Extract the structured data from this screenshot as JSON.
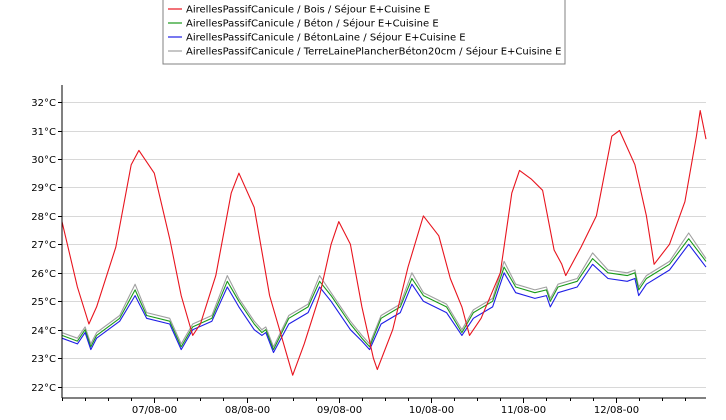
{
  "chart_data": {
    "type": "line",
    "title": "",
    "xlabel": "",
    "ylabel": "",
    "ylim": [
      21.6,
      32.6
    ],
    "xlim": [
      "2000-08-06T00:00",
      "2000-08-12T23:30"
    ],
    "y_ticks": [
      22,
      23,
      24,
      25,
      26,
      27,
      28,
      29,
      30,
      31,
      32
    ],
    "y_tick_labels": [
      "22°C",
      "23°C",
      "24°C",
      "25°C",
      "26°C",
      "27°C",
      "28°C",
      "29°C",
      "30°C",
      "31°C",
      "32°C"
    ],
    "x_ticks": [
      "2000-08-07T00:00",
      "2000-08-08T00:00",
      "2000-08-09T00:00",
      "2000-08-10T00:00",
      "2000-08-11T00:00",
      "2000-08-12T00:00"
    ],
    "x_tick_labels": [
      "07/08-00",
      "08/08-00",
      "09/08-00",
      "10/08-00",
      "11/08-00",
      "12/08-00"
    ],
    "grid": "horizontal",
    "legend_position": "top",
    "series": [
      {
        "name": "AirellesPassifCanicule / Bois / Séjour E+Cuisine E",
        "color": "#e8141e",
        "points": [
          [
            "2000-08-06T00:00",
            27.8
          ],
          [
            "2000-08-06T04:00",
            25.5
          ],
          [
            "2000-08-06T07:00",
            24.2
          ],
          [
            "2000-08-06T09:00",
            24.8
          ],
          [
            "2000-08-06T14:00",
            26.9
          ],
          [
            "2000-08-06T18:00",
            29.8
          ],
          [
            "2000-08-06T20:00",
            30.3
          ],
          [
            "2000-08-07T00:00",
            29.5
          ],
          [
            "2000-08-07T04:00",
            27.2
          ],
          [
            "2000-08-07T07:00",
            25.2
          ],
          [
            "2000-08-07T10:00",
            23.8
          ],
          [
            "2000-08-07T12:00",
            24.2
          ],
          [
            "2000-08-07T16:00",
            25.9
          ],
          [
            "2000-08-07T20:00",
            28.8
          ],
          [
            "2000-08-07T22:00",
            29.5
          ],
          [
            "2000-08-08T02:00",
            28.3
          ],
          [
            "2000-08-08T06:00",
            25.2
          ],
          [
            "2000-08-08T09:00",
            23.8
          ],
          [
            "2000-08-08T12:00",
            22.4
          ],
          [
            "2000-08-08T15:00",
            23.5
          ],
          [
            "2000-08-08T19:00",
            25.2
          ],
          [
            "2000-08-08T22:00",
            27.0
          ],
          [
            "2000-08-09T00:00",
            27.8
          ],
          [
            "2000-08-09T03:00",
            27.0
          ],
          [
            "2000-08-09T06:00",
            24.8
          ],
          [
            "2000-08-09T09:00",
            23.0
          ],
          [
            "2000-08-09T10:00",
            22.6
          ],
          [
            "2000-08-09T14:00",
            24.0
          ],
          [
            "2000-08-09T18:00",
            26.2
          ],
          [
            "2000-08-09T22:00",
            28.0
          ],
          [
            "2000-08-10T02:00",
            27.3
          ],
          [
            "2000-08-10T05:00",
            25.8
          ],
          [
            "2000-08-10T08:00",
            24.8
          ],
          [
            "2000-08-10T10:00",
            23.8
          ],
          [
            "2000-08-10T13:00",
            24.4
          ],
          [
            "2000-08-10T18:00",
            26.0
          ],
          [
            "2000-08-10T21:00",
            28.8
          ],
          [
            "2000-08-10T23:00",
            29.6
          ],
          [
            "2000-08-11T02:00",
            29.3
          ],
          [
            "2000-08-11T05:00",
            28.9
          ],
          [
            "2000-08-11T08:00",
            26.8
          ],
          [
            "2000-08-11T10:00",
            26.3
          ],
          [
            "2000-08-11T11:00",
            25.9
          ],
          [
            "2000-08-11T15:00",
            26.9
          ],
          [
            "2000-08-11T19:00",
            28.0
          ],
          [
            "2000-08-11T23:00",
            30.8
          ],
          [
            "2000-08-12T01:00",
            31.0
          ],
          [
            "2000-08-12T05:00",
            29.8
          ],
          [
            "2000-08-12T08:00",
            28.0
          ],
          [
            "2000-08-12T10:00",
            26.3
          ],
          [
            "2000-08-12T14:00",
            27.0
          ],
          [
            "2000-08-12T18:00",
            28.5
          ],
          [
            "2000-08-12T21:00",
            30.8
          ],
          [
            "2000-08-12T22:00",
            31.7
          ],
          [
            "2000-08-12T23:30",
            30.7
          ]
        ]
      },
      {
        "name": "AirellesPassifCanicule / Béton / Séjour E+Cuisine E",
        "color": "#1a9a1a",
        "points": [
          [
            "2000-08-06T00:00",
            23.8
          ],
          [
            "2000-08-06T04:00",
            23.6
          ],
          [
            "2000-08-06T06:00",
            24.0
          ],
          [
            "2000-08-06T07:30",
            23.4
          ],
          [
            "2000-08-06T09:00",
            23.8
          ],
          [
            "2000-08-06T15:00",
            24.4
          ],
          [
            "2000-08-06T19:00",
            25.4
          ],
          [
            "2000-08-06T22:00",
            24.5
          ],
          [
            "2000-08-07T04:00",
            24.3
          ],
          [
            "2000-08-07T07:00",
            23.4
          ],
          [
            "2000-08-07T10:00",
            24.1
          ],
          [
            "2000-08-07T15:00",
            24.4
          ],
          [
            "2000-08-07T19:00",
            25.7
          ],
          [
            "2000-08-07T22:00",
            25.0
          ],
          [
            "2000-08-08T02:00",
            24.2
          ],
          [
            "2000-08-08T04:00",
            23.9
          ],
          [
            "2000-08-08T05:00",
            24.0
          ],
          [
            "2000-08-08T07:00",
            23.3
          ],
          [
            "2000-08-08T11:00",
            24.4
          ],
          [
            "2000-08-08T16:00",
            24.8
          ],
          [
            "2000-08-08T19:00",
            25.7
          ],
          [
            "2000-08-08T22:00",
            25.2
          ],
          [
            "2000-08-09T03:00",
            24.2
          ],
          [
            "2000-08-09T06:00",
            23.7
          ],
          [
            "2000-08-09T08:00",
            23.4
          ],
          [
            "2000-08-09T11:00",
            24.4
          ],
          [
            "2000-08-09T16:00",
            24.8
          ],
          [
            "2000-08-09T19:00",
            25.8
          ],
          [
            "2000-08-09T22:00",
            25.2
          ],
          [
            "2000-08-10T04:00",
            24.8
          ],
          [
            "2000-08-10T08:00",
            23.9
          ],
          [
            "2000-08-10T11:00",
            24.6
          ],
          [
            "2000-08-10T16:00",
            25.0
          ],
          [
            "2000-08-10T19:00",
            26.2
          ],
          [
            "2000-08-10T22:00",
            25.5
          ],
          [
            "2000-08-11T03:00",
            25.3
          ],
          [
            "2000-08-11T06:00",
            25.4
          ],
          [
            "2000-08-11T07:00",
            25.0
          ],
          [
            "2000-08-11T09:00",
            25.5
          ],
          [
            "2000-08-11T14:00",
            25.7
          ],
          [
            "2000-08-11T18:00",
            26.5
          ],
          [
            "2000-08-11T22:00",
            26.0
          ],
          [
            "2000-08-12T03:00",
            25.9
          ],
          [
            "2000-08-12T05:00",
            26.0
          ],
          [
            "2000-08-12T06:00",
            25.4
          ],
          [
            "2000-08-12T08:00",
            25.8
          ],
          [
            "2000-08-12T14:00",
            26.3
          ],
          [
            "2000-08-12T19:00",
            27.2
          ],
          [
            "2000-08-12T23:30",
            26.4
          ]
        ]
      },
      {
        "name": "AirellesPassifCanicule / BétonLaine / Séjour E+Cuisine E",
        "color": "#1e1ee6",
        "points": [
          [
            "2000-08-06T00:00",
            23.7
          ],
          [
            "2000-08-06T04:00",
            23.5
          ],
          [
            "2000-08-06T06:00",
            23.9
          ],
          [
            "2000-08-06T07:30",
            23.3
          ],
          [
            "2000-08-06T09:00",
            23.7
          ],
          [
            "2000-08-06T15:00",
            24.3
          ],
          [
            "2000-08-06T19:00",
            25.2
          ],
          [
            "2000-08-06T22:00",
            24.4
          ],
          [
            "2000-08-07T04:00",
            24.2
          ],
          [
            "2000-08-07T07:00",
            23.3
          ],
          [
            "2000-08-07T10:00",
            24.0
          ],
          [
            "2000-08-07T15:00",
            24.3
          ],
          [
            "2000-08-07T19:00",
            25.5
          ],
          [
            "2000-08-07T22:00",
            24.8
          ],
          [
            "2000-08-08T02:00",
            24.0
          ],
          [
            "2000-08-08T04:00",
            23.8
          ],
          [
            "2000-08-08T05:00",
            23.9
          ],
          [
            "2000-08-08T07:00",
            23.2
          ],
          [
            "2000-08-08T11:00",
            24.2
          ],
          [
            "2000-08-08T16:00",
            24.6
          ],
          [
            "2000-08-08T19:00",
            25.5
          ],
          [
            "2000-08-08T22:00",
            25.0
          ],
          [
            "2000-08-09T03:00",
            24.0
          ],
          [
            "2000-08-09T06:00",
            23.6
          ],
          [
            "2000-08-09T08:00",
            23.3
          ],
          [
            "2000-08-09T11:00",
            24.2
          ],
          [
            "2000-08-09T16:00",
            24.6
          ],
          [
            "2000-08-09T19:00",
            25.6
          ],
          [
            "2000-08-09T22:00",
            25.0
          ],
          [
            "2000-08-10T04:00",
            24.6
          ],
          [
            "2000-08-10T08:00",
            23.8
          ],
          [
            "2000-08-10T11:00",
            24.4
          ],
          [
            "2000-08-10T16:00",
            24.8
          ],
          [
            "2000-08-10T19:00",
            26.0
          ],
          [
            "2000-08-10T22:00",
            25.3
          ],
          [
            "2000-08-11T03:00",
            25.1
          ],
          [
            "2000-08-11T06:00",
            25.2
          ],
          [
            "2000-08-11T07:00",
            24.8
          ],
          [
            "2000-08-11T09:00",
            25.3
          ],
          [
            "2000-08-11T14:00",
            25.5
          ],
          [
            "2000-08-11T18:00",
            26.3
          ],
          [
            "2000-08-11T22:00",
            25.8
          ],
          [
            "2000-08-12T03:00",
            25.7
          ],
          [
            "2000-08-12T05:00",
            25.8
          ],
          [
            "2000-08-12T06:00",
            25.2
          ],
          [
            "2000-08-12T08:00",
            25.6
          ],
          [
            "2000-08-12T14:00",
            26.1
          ],
          [
            "2000-08-12T19:00",
            27.0
          ],
          [
            "2000-08-12T23:30",
            26.2
          ]
        ]
      },
      {
        "name": "AirellesPassifCanicule / TerreLainePlancherBéton20cm / Séjour E+Cuisine E",
        "color": "#a0a0a0",
        "points": [
          [
            "2000-08-06T00:00",
            23.9
          ],
          [
            "2000-08-06T04:00",
            23.7
          ],
          [
            "2000-08-06T06:00",
            24.1
          ],
          [
            "2000-08-06T07:30",
            23.5
          ],
          [
            "2000-08-06T09:00",
            23.9
          ],
          [
            "2000-08-06T15:00",
            24.5
          ],
          [
            "2000-08-06T19:00",
            25.6
          ],
          [
            "2000-08-06T22:00",
            24.6
          ],
          [
            "2000-08-07T04:00",
            24.4
          ],
          [
            "2000-08-07T07:00",
            23.5
          ],
          [
            "2000-08-07T10:00",
            24.2
          ],
          [
            "2000-08-07T15:00",
            24.5
          ],
          [
            "2000-08-07T19:00",
            25.9
          ],
          [
            "2000-08-07T22:00",
            25.1
          ],
          [
            "2000-08-08T02:00",
            24.3
          ],
          [
            "2000-08-08T04:00",
            24.0
          ],
          [
            "2000-08-08T05:00",
            24.1
          ],
          [
            "2000-08-08T07:00",
            23.4
          ],
          [
            "2000-08-08T11:00",
            24.5
          ],
          [
            "2000-08-08T16:00",
            24.9
          ],
          [
            "2000-08-08T19:00",
            25.9
          ],
          [
            "2000-08-08T22:00",
            25.3
          ],
          [
            "2000-08-09T03:00",
            24.3
          ],
          [
            "2000-08-09T06:00",
            23.8
          ],
          [
            "2000-08-09T08:00",
            23.5
          ],
          [
            "2000-08-09T11:00",
            24.5
          ],
          [
            "2000-08-09T16:00",
            24.9
          ],
          [
            "2000-08-09T19:00",
            26.0
          ],
          [
            "2000-08-09T22:00",
            25.3
          ],
          [
            "2000-08-10T04:00",
            24.9
          ],
          [
            "2000-08-10T08:00",
            24.0
          ],
          [
            "2000-08-10T11:00",
            24.7
          ],
          [
            "2000-08-10T16:00",
            25.1
          ],
          [
            "2000-08-10T19:00",
            26.4
          ],
          [
            "2000-08-10T22:00",
            25.6
          ],
          [
            "2000-08-11T03:00",
            25.4
          ],
          [
            "2000-08-11T06:00",
            25.5
          ],
          [
            "2000-08-11T07:00",
            25.1
          ],
          [
            "2000-08-11T09:00",
            25.6
          ],
          [
            "2000-08-11T14:00",
            25.8
          ],
          [
            "2000-08-11T18:00",
            26.7
          ],
          [
            "2000-08-11T22:00",
            26.1
          ],
          [
            "2000-08-12T03:00",
            26.0
          ],
          [
            "2000-08-12T05:00",
            26.1
          ],
          [
            "2000-08-12T06:00",
            25.5
          ],
          [
            "2000-08-12T08:00",
            25.9
          ],
          [
            "2000-08-12T14:00",
            26.4
          ],
          [
            "2000-08-12T19:00",
            27.4
          ],
          [
            "2000-08-12T23:30",
            26.5
          ]
        ]
      }
    ]
  }
}
